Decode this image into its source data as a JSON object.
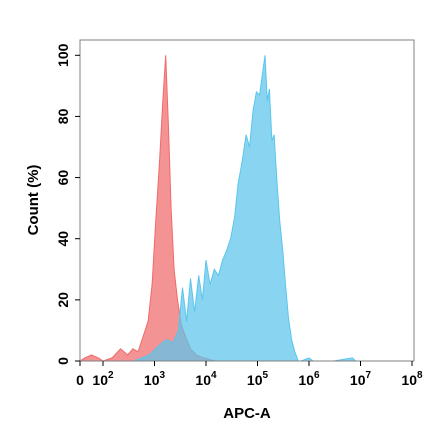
{
  "chart_data": {
    "type": "area",
    "title": "",
    "xlabel": "APC-A",
    "ylabel": "Count  (%)",
    "xscale": "biexponential-log",
    "xlim": [
      0,
      100000000
    ],
    "ylim": [
      0,
      105
    ],
    "grid": false,
    "legend": "none",
    "x_ticks": [
      {
        "value": 0,
        "base": "0",
        "exp": ""
      },
      {
        "value": 100,
        "base": "10",
        "exp": "2"
      },
      {
        "value": 1000,
        "base": "10",
        "exp": "3"
      },
      {
        "value": 10000,
        "base": "10",
        "exp": "4"
      },
      {
        "value": 100000,
        "base": "10",
        "exp": "5"
      },
      {
        "value": 1000000,
        "base": "10",
        "exp": "6"
      },
      {
        "value": 10000000,
        "base": "10",
        "exp": "7"
      },
      {
        "value": 100000000,
        "base": "10",
        "exp": "8"
      }
    ],
    "y_ticks": [
      "0",
      "20",
      "40",
      "60",
      "80",
      "100"
    ],
    "series": [
      {
        "color": "#f06a6a",
        "points": [
          [
            0,
            0
          ],
          [
            20,
            1
          ],
          [
            50,
            2
          ],
          [
            80,
            1
          ],
          [
            100,
            0
          ],
          [
            150,
            1
          ],
          [
            220,
            4
          ],
          [
            300,
            2
          ],
          [
            380,
            4
          ],
          [
            480,
            3
          ],
          [
            600,
            8
          ],
          [
            750,
            13
          ],
          [
            900,
            25
          ],
          [
            1050,
            45
          ],
          [
            1250,
            65
          ],
          [
            1450,
            85
          ],
          [
            1650,
            100
          ],
          [
            1850,
            78
          ],
          [
            2100,
            50
          ],
          [
            2400,
            30
          ],
          [
            2800,
            20
          ],
          [
            3300,
            12
          ],
          [
            4000,
            8
          ],
          [
            5000,
            4
          ],
          [
            6500,
            2
          ],
          [
            9000,
            1
          ],
          [
            15000,
            0
          ],
          [
            40000,
            0
          ],
          [
            100000,
            0
          ]
        ]
      },
      {
        "color": "#5bc5ec",
        "points": [
          [
            400,
            0
          ],
          [
            800,
            2
          ],
          [
            1200,
            5
          ],
          [
            1700,
            7
          ],
          [
            2300,
            6
          ],
          [
            2900,
            10
          ],
          [
            3500,
            24
          ],
          [
            4200,
            13
          ],
          [
            5000,
            27
          ],
          [
            6000,
            16
          ],
          [
            7200,
            28
          ],
          [
            8500,
            20
          ],
          [
            10000,
            33
          ],
          [
            12000,
            25
          ],
          [
            14500,
            30
          ],
          [
            17500,
            28
          ],
          [
            21000,
            33
          ],
          [
            25000,
            36
          ],
          [
            30000,
            40
          ],
          [
            36000,
            47
          ],
          [
            42000,
            58
          ],
          [
            50000,
            65
          ],
          [
            60000,
            74
          ],
          [
            70000,
            70
          ],
          [
            82000,
            82
          ],
          [
            95000,
            88
          ],
          [
            110000,
            87
          ],
          [
            125000,
            94
          ],
          [
            140000,
            100
          ],
          [
            155000,
            85
          ],
          [
            170000,
            89
          ],
          [
            190000,
            72
          ],
          [
            210000,
            74
          ],
          [
            240000,
            58
          ],
          [
            270000,
            46
          ],
          [
            310000,
            36
          ],
          [
            350000,
            25
          ],
          [
            400000,
            14
          ],
          [
            460000,
            7
          ],
          [
            530000,
            3
          ],
          [
            620000,
            0
          ],
          [
            700000,
            0
          ],
          [
            1000000,
            1
          ],
          [
            1200000,
            0
          ],
          [
            3000000,
            0
          ],
          [
            7000000,
            1
          ],
          [
            8000000,
            0
          ]
        ]
      }
    ]
  }
}
